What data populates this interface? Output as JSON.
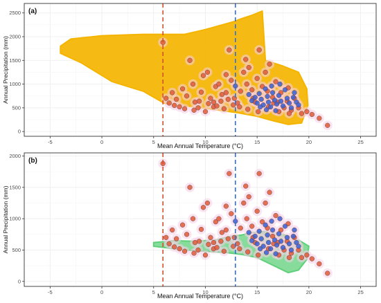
{
  "figure": {
    "background": "#ffffff",
    "colors": {
      "cloud_a": "#f5b400",
      "cloud_b": "#5fd07a",
      "halo": "#f7cde6",
      "red_points": "#e05a3a",
      "blue_points": "#3a5fd6",
      "line_red": "#d2502a",
      "line_blue": "#2f6fe0",
      "grid": "#ececec",
      "axis_text": "#4d4d4d"
    },
    "panels": [
      {
        "label": "(a)"
      },
      {
        "label": "(b)"
      }
    ]
  },
  "chart_data": [
    {
      "type": "scatter",
      "panel": "(a)",
      "xlabel": "Mean Annual Temperature (°C)",
      "ylabel": "Annual Precipitation (mm)",
      "xlim": [
        -7.5,
        26.5
      ],
      "ylim": [
        -100,
        2700
      ],
      "xticks": [
        -5,
        0,
        5,
        10,
        15,
        20,
        25
      ],
      "yticks": [
        0,
        500,
        1000,
        1500,
        2000,
        2500
      ],
      "vlines": [
        {
          "x": 5.9,
          "color": "#d2502a",
          "style": "dashed"
        },
        {
          "x": 12.9,
          "color": "#2f6fe0",
          "style": "dashed"
        }
      ],
      "grid": true,
      "envelope": {
        "description_color": "#f5b400",
        "upper": [
          [
            -4.0,
            1800
          ],
          [
            -3.0,
            1950
          ],
          [
            0,
            2020
          ],
          [
            4.0,
            2050
          ],
          [
            8.0,
            2050
          ],
          [
            10.0,
            2150
          ],
          [
            12.5,
            2300
          ],
          [
            13.5,
            2380
          ],
          [
            14.5,
            2450
          ],
          [
            15.5,
            2540
          ],
          [
            15.8,
            1500
          ],
          [
            17.5,
            1380
          ],
          [
            19.0,
            1250
          ],
          [
            19.8,
            900
          ],
          [
            19.9,
            550
          ]
        ],
        "lower": [
          [
            19.9,
            550
          ],
          [
            19.3,
            180
          ],
          [
            18.0,
            150
          ],
          [
            16.5,
            230
          ],
          [
            15.0,
            320
          ],
          [
            13.0,
            400
          ],
          [
            11.0,
            460
          ],
          [
            9.0,
            520
          ],
          [
            7.0,
            560
          ],
          [
            6.0,
            600
          ],
          [
            4.0,
            850
          ],
          [
            1.0,
            1050
          ],
          [
            -2.0,
            1450
          ],
          [
            -4.0,
            1650
          ]
        ]
      },
      "series": [
        {
          "name": "",
          "color": "#e05a3a",
          "points": [
            [
              5.9,
              1880
            ],
            [
              6.2,
              700
            ],
            [
              6.5,
              600
            ],
            [
              7.0,
              550
            ],
            [
              7.5,
              520
            ],
            [
              8.0,
              480
            ],
            [
              8.2,
              750
            ],
            [
              8.8,
              1000
            ],
            [
              9.0,
              620
            ],
            [
              9.3,
              500
            ],
            [
              9.6,
              830
            ],
            [
              10.0,
              420
            ],
            [
              10.2,
              1250
            ],
            [
              10.5,
              700
            ],
            [
              10.8,
              520
            ],
            [
              11.0,
              950
            ],
            [
              11.3,
              1000
            ],
            [
              11.6,
              780
            ],
            [
              12.0,
              820
            ],
            [
              12.3,
              1720
            ],
            [
              12.5,
              1080
            ],
            [
              12.8,
              700
            ],
            [
              13.1,
              600
            ],
            [
              13.4,
              850
            ],
            [
              13.7,
              1250
            ],
            [
              14.0,
              1000
            ],
            [
              14.2,
              1350
            ],
            [
              14.5,
              880
            ],
            [
              14.8,
              620
            ],
            [
              15.0,
              1120
            ],
            [
              15.2,
              1720
            ],
            [
              15.5,
              950
            ],
            [
              15.8,
              1250
            ],
            [
              16.0,
              850
            ],
            [
              16.2,
              1420
            ],
            [
              16.5,
              720
            ],
            [
              16.8,
              1050
            ],
            [
              17.0,
              620
            ],
            [
              17.3,
              820
            ],
            [
              17.6,
              500
            ],
            [
              18.0,
              920
            ],
            [
              18.3,
              450
            ],
            [
              18.6,
              700
            ],
            [
              19.0,
              500
            ],
            [
              19.3,
              380
            ],
            [
              19.8,
              420
            ],
            [
              20.3,
              360
            ],
            [
              21.0,
              280
            ],
            [
              21.8,
              130
            ],
            [
              7.8,
              900
            ],
            [
              9.8,
              1180
            ],
            [
              10.8,
              620
            ],
            [
              11.8,
              480
            ],
            [
              12.2,
              680
            ],
            [
              13.3,
              520
            ],
            [
              14.1,
              470
            ],
            [
              15.1,
              420
            ],
            [
              16.1,
              520
            ],
            [
              17.1,
              420
            ],
            [
              18.1,
              380
            ],
            [
              8.5,
              1500
            ],
            [
              12.0,
              1200
            ],
            [
              13.9,
              1520
            ],
            [
              11.1,
              540
            ],
            [
              10.3,
              590
            ],
            [
              9.4,
              640
            ],
            [
              8.9,
              450
            ],
            [
              14.6,
              700
            ],
            [
              16.6,
              600
            ],
            [
              17.9,
              640
            ],
            [
              6.8,
              820
            ],
            [
              7.2,
              680
            ],
            [
              11.5,
              640
            ],
            [
              12.7,
              560
            ]
          ]
        },
        {
          "name": "",
          "color": "#3a5fd6",
          "points": [
            [
              14.5,
              650
            ],
            [
              14.8,
              720
            ],
            [
              15.0,
              600
            ],
            [
              15.2,
              800
            ],
            [
              15.4,
              680
            ],
            [
              15.6,
              560
            ],
            [
              15.8,
              900
            ],
            [
              16.0,
              740
            ],
            [
              16.1,
              620
            ],
            [
              16.3,
              520
            ],
            [
              16.5,
              820
            ],
            [
              16.7,
              660
            ],
            [
              16.9,
              580
            ],
            [
              17.1,
              760
            ],
            [
              17.3,
              640
            ],
            [
              17.5,
              540
            ],
            [
              17.7,
              880
            ],
            [
              17.9,
              700
            ],
            [
              18.1,
              600
            ],
            [
              18.3,
              500
            ],
            [
              18.5,
              720
            ],
            [
              18.8,
              620
            ],
            [
              19.0,
              560
            ],
            [
              15.3,
              520
            ],
            [
              16.4,
              960
            ],
            [
              17.2,
              1000
            ],
            [
              14.2,
              780
            ],
            [
              15.9,
              460
            ],
            [
              16.8,
              440
            ],
            [
              18.6,
              820
            ],
            [
              12.9,
              960
            ]
          ]
        }
      ]
    },
    {
      "type": "scatter",
      "panel": "(b)",
      "xlabel": "Mean Annual Temperature (°C)",
      "ylabel": "Annual Precipitation (mm)",
      "xlim": [
        -7.5,
        26.5
      ],
      "ylim": [
        -80,
        2050
      ],
      "xticks": [
        -5,
        0,
        5,
        10,
        15,
        20,
        25
      ],
      "yticks": [
        0,
        500,
        1000,
        1500,
        2000
      ],
      "vlines": [
        {
          "x": 5.9,
          "color": "#d2502a",
          "style": "dashed"
        },
        {
          "x": 12.9,
          "color": "#2f6fe0",
          "style": "dashed"
        }
      ],
      "grid": true,
      "envelope": {
        "description_color": "#5fd07a",
        "upper": [
          [
            5.0,
            620
          ],
          [
            7.0,
            650
          ],
          [
            9.0,
            640
          ],
          [
            11.0,
            660
          ],
          [
            12.5,
            720
          ],
          [
            13.5,
            740
          ],
          [
            14.5,
            780
          ],
          [
            16.0,
            800
          ],
          [
            17.5,
            750
          ],
          [
            19.0,
            660
          ],
          [
            20.0,
            560
          ]
        ],
        "lower": [
          [
            20.0,
            560
          ],
          [
            19.8,
            350
          ],
          [
            19.0,
            180
          ],
          [
            18.0,
            140
          ],
          [
            17.0,
            220
          ],
          [
            16.0,
            300
          ],
          [
            15.0,
            380
          ],
          [
            13.5,
            430
          ],
          [
            12.0,
            460
          ],
          [
            10.0,
            480
          ],
          [
            8.0,
            500
          ],
          [
            6.0,
            540
          ],
          [
            5.0,
            560
          ]
        ]
      },
      "series": [
        {
          "name": "",
          "color": "#e05a3a",
          "points": [
            [
              5.9,
              1880
            ],
            [
              6.2,
              700
            ],
            [
              6.5,
              600
            ],
            [
              7.0,
              550
            ],
            [
              7.5,
              520
            ],
            [
              8.0,
              480
            ],
            [
              8.2,
              750
            ],
            [
              8.8,
              1000
            ],
            [
              9.0,
              620
            ],
            [
              9.3,
              500
            ],
            [
              9.6,
              830
            ],
            [
              10.0,
              420
            ],
            [
              10.2,
              1250
            ],
            [
              10.5,
              700
            ],
            [
              10.8,
              520
            ],
            [
              11.0,
              950
            ],
            [
              11.3,
              1000
            ],
            [
              11.6,
              780
            ],
            [
              12.0,
              820
            ],
            [
              12.3,
              1720
            ],
            [
              12.5,
              1080
            ],
            [
              12.8,
              700
            ],
            [
              13.1,
              600
            ],
            [
              13.4,
              850
            ],
            [
              13.7,
              1250
            ],
            [
              14.0,
              1000
            ],
            [
              14.2,
              1350
            ],
            [
              14.5,
              880
            ],
            [
              14.8,
              620
            ],
            [
              15.0,
              1120
            ],
            [
              15.2,
              1720
            ],
            [
              15.5,
              950
            ],
            [
              15.8,
              1250
            ],
            [
              16.0,
              850
            ],
            [
              16.2,
              1420
            ],
            [
              16.5,
              720
            ],
            [
              16.8,
              1050
            ],
            [
              17.0,
              620
            ],
            [
              17.3,
              820
            ],
            [
              17.6,
              500
            ],
            [
              18.0,
              920
            ],
            [
              18.3,
              450
            ],
            [
              18.6,
              700
            ],
            [
              19.0,
              500
            ],
            [
              19.3,
              380
            ],
            [
              19.8,
              420
            ],
            [
              20.3,
              360
            ],
            [
              21.0,
              280
            ],
            [
              21.8,
              130
            ],
            [
              7.8,
              900
            ],
            [
              9.8,
              1180
            ],
            [
              10.8,
              620
            ],
            [
              11.8,
              480
            ],
            [
              12.2,
              680
            ],
            [
              13.3,
              520
            ],
            [
              14.1,
              470
            ],
            [
              15.1,
              420
            ],
            [
              16.1,
              520
            ],
            [
              17.1,
              420
            ],
            [
              18.1,
              380
            ],
            [
              8.5,
              1500
            ],
            [
              12.0,
              1200
            ],
            [
              13.9,
              1520
            ],
            [
              11.1,
              540
            ],
            [
              10.3,
              590
            ],
            [
              9.4,
              640
            ],
            [
              8.9,
              450
            ],
            [
              14.6,
              700
            ],
            [
              16.6,
              600
            ],
            [
              17.9,
              640
            ],
            [
              6.8,
              820
            ],
            [
              7.2,
              680
            ],
            [
              11.5,
              640
            ],
            [
              12.7,
              560
            ]
          ]
        },
        {
          "name": "",
          "color": "#3a5fd6",
          "points": [
            [
              14.5,
              650
            ],
            [
              14.8,
              720
            ],
            [
              15.0,
              600
            ],
            [
              15.2,
              800
            ],
            [
              15.4,
              680
            ],
            [
              15.6,
              560
            ],
            [
              15.8,
              900
            ],
            [
              16.0,
              740
            ],
            [
              16.1,
              620
            ],
            [
              16.3,
              520
            ],
            [
              16.5,
              820
            ],
            [
              16.7,
              660
            ],
            [
              16.9,
              580
            ],
            [
              17.1,
              760
            ],
            [
              17.3,
              640
            ],
            [
              17.5,
              540
            ],
            [
              17.7,
              880
            ],
            [
              17.9,
              700
            ],
            [
              18.1,
              600
            ],
            [
              18.3,
              500
            ],
            [
              18.5,
              720
            ],
            [
              18.8,
              620
            ],
            [
              19.0,
              560
            ],
            [
              15.3,
              520
            ],
            [
              16.4,
              960
            ],
            [
              17.2,
              1000
            ],
            [
              14.2,
              780
            ],
            [
              15.9,
              460
            ],
            [
              16.8,
              440
            ],
            [
              18.6,
              820
            ],
            [
              12.9,
              960
            ]
          ]
        }
      ]
    }
  ]
}
